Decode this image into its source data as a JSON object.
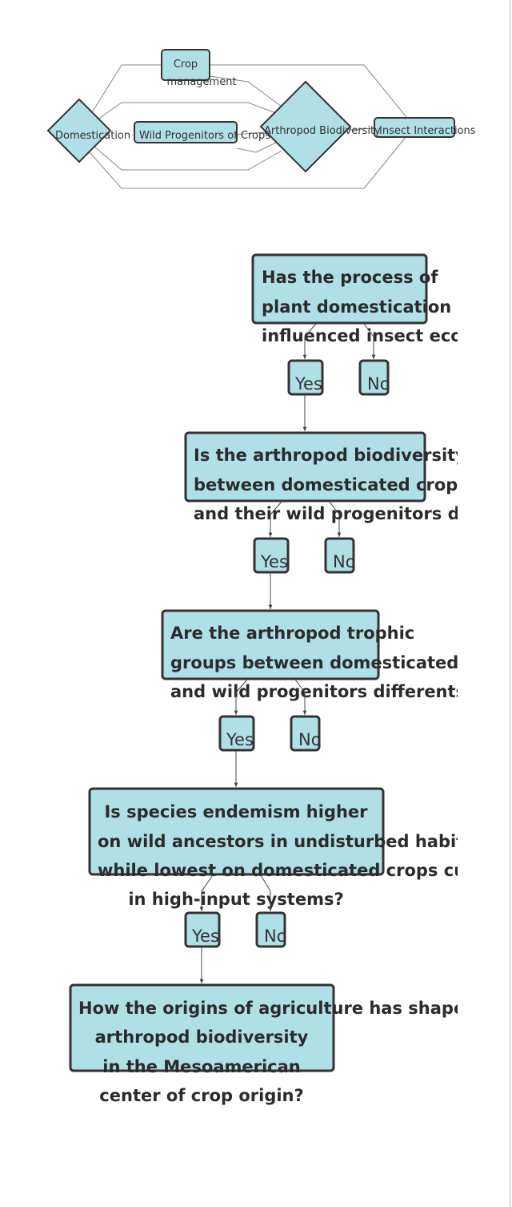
{
  "concept_map": {
    "nodes": {
      "crop_management": [
        "Crop",
        "management"
      ],
      "domestication": "Domestication",
      "wild_progenitors": "Wild Progenitors of Crops",
      "arthropod_biodiversity": "Arthropod Biodiversity",
      "insect_interactions": "Insect Interactions"
    }
  },
  "flowchart": {
    "questions": [
      [
        "Has the process of",
        "plant domestication",
        "influenced insect ecology?"
      ],
      [
        "Is the arthropod biodiversity",
        "between domesticated crops",
        "and their wild progenitors different?"
      ],
      [
        "Are the arthropod trophic",
        "groups between domesticated crops",
        "and wild progenitors differents?"
      ],
      [
        "Is species endemism higher",
        "on wild ancestors in undisturbed habitats",
        "while lowest on domesticated crops cultivated",
        "in high-input systems?"
      ],
      [
        "How the origins of agriculture has shaped",
        "arthropod biodiversity",
        "in the Mesoamerican",
        "center of crop origin?"
      ]
    ],
    "yes_label": "Yes",
    "no_label": "No"
  },
  "colors": {
    "node_fill": "#b0dfe5",
    "node_stroke": "#333333",
    "edge": "#888888"
  }
}
